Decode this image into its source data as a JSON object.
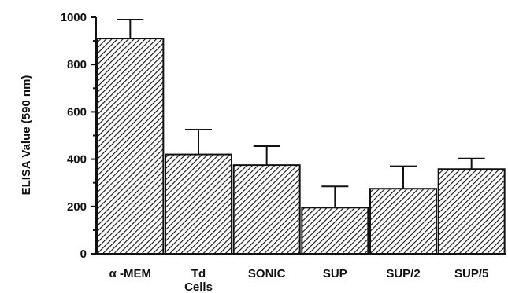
{
  "chart_data": {
    "type": "bar",
    "title": "",
    "xlabel": "",
    "ylabel": "ELISA Value  (590  nm)",
    "ylim": [
      0,
      1000
    ],
    "yticks": [
      "0",
      "200",
      "400",
      "600",
      "800",
      "1000"
    ],
    "categories": [
      [
        "α -MEM"
      ],
      [
        "Td",
        "Cells"
      ],
      [
        "SONIC"
      ],
      [
        "SUP"
      ],
      [
        "SUP/2"
      ],
      [
        "SUP/5"
      ]
    ],
    "values": [
      910,
      420,
      375,
      195,
      275,
      358
    ],
    "errors": [
      80,
      105,
      80,
      90,
      95,
      45
    ],
    "grid": false,
    "bar_fill": "hatched",
    "colors": {
      "bar_stroke": "#111111",
      "hatch": "#111111",
      "axis": "#111111"
    }
  }
}
